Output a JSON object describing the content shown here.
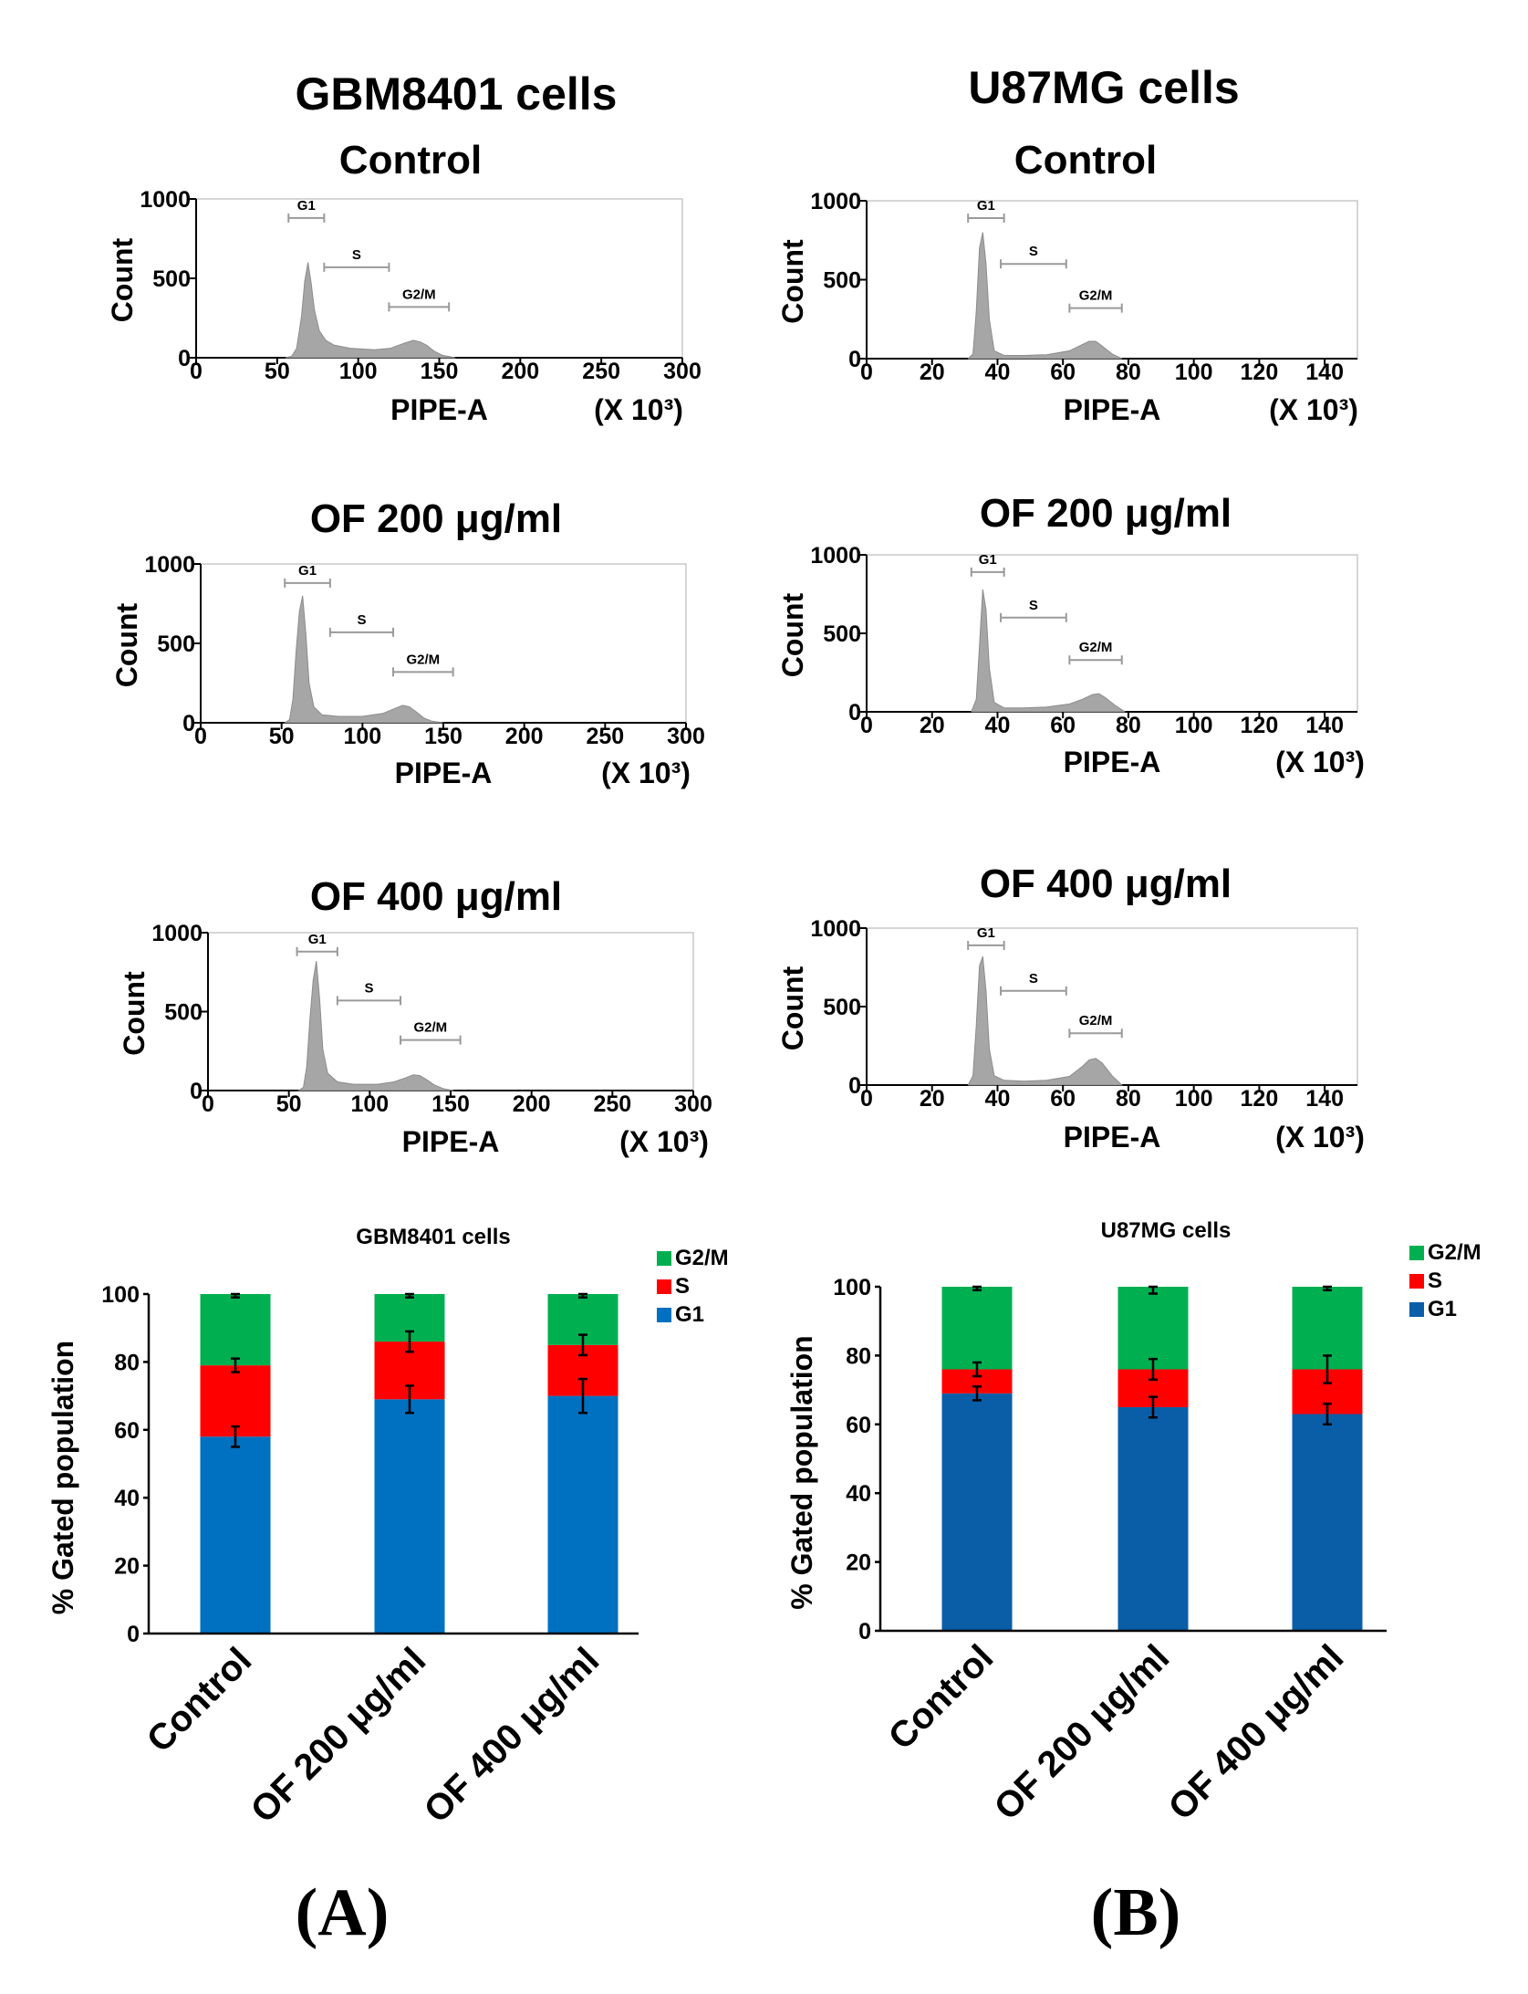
{
  "column_titles": [
    "GBM8401 cells",
    "U87MG cells"
  ],
  "panel_labels": [
    "(A)",
    "(B)"
  ],
  "colors": {
    "histogram_fill": "#a6a6a6",
    "gate": "#9a9a9a",
    "g1_A": "#0070c0",
    "g1_B": "#0a5ea8",
    "s": "#ff0000",
    "g2m": "#00b050"
  },
  "chart_data": [
    {
      "id": "hist-gbm-control",
      "type": "area",
      "cell_line": "GBM8401 cells",
      "title": "Control",
      "xlabel": "PIPE-A",
      "xunit": "(X 10³)",
      "ylabel": "Count",
      "xlim": [
        0,
        300
      ],
      "ylim": [
        0,
        1000
      ],
      "xticks": [
        0,
        50,
        100,
        150,
        200,
        250,
        300
      ],
      "yticks": [
        0,
        500,
        1000
      ],
      "gates": [
        {
          "label": "G1",
          "x_range": [
            57,
            79
          ],
          "y": 880
        },
        {
          "label": "S",
          "x_range": [
            79,
            119
          ],
          "y": 570
        },
        {
          "label": "G2/M",
          "x_range": [
            119,
            156
          ],
          "y": 320
        }
      ],
      "x": [
        55,
        59,
        62,
        65,
        67,
        69,
        71,
        73,
        76,
        80,
        85,
        95,
        110,
        120,
        128,
        134,
        138,
        142,
        147,
        152,
        160
      ],
      "values": [
        0,
        10,
        60,
        260,
        480,
        600,
        470,
        300,
        170,
        110,
        80,
        60,
        50,
        60,
        90,
        110,
        100,
        80,
        40,
        15,
        0
      ]
    },
    {
      "id": "hist-u87-control",
      "type": "area",
      "cell_line": "U87MG cells",
      "title": "Control",
      "xlabel": "PIPE-A",
      "xunit": "(X 10³)",
      "ylabel": "Count",
      "xlim": [
        0,
        150
      ],
      "ylim": [
        0,
        1000
      ],
      "xticks": [
        0,
        20,
        40,
        60,
        80,
        100,
        120,
        140
      ],
      "yticks": [
        0,
        500,
        1000
      ],
      "gates": [
        {
          "label": "G1",
          "x_range": [
            31,
            42
          ],
          "y": 890
        },
        {
          "label": "S",
          "x_range": [
            41,
            61
          ],
          "y": 600
        },
        {
          "label": "G2/M",
          "x_range": [
            62,
            78
          ],
          "y": 320
        }
      ],
      "x": [
        31,
        32.5,
        33.5,
        34.5,
        35.5,
        36.5,
        37.5,
        39,
        42,
        48,
        55,
        62,
        66,
        68,
        70,
        72,
        75,
        78
      ],
      "values": [
        0,
        30,
        300,
        700,
        800,
        600,
        250,
        50,
        20,
        20,
        25,
        50,
        90,
        110,
        110,
        80,
        30,
        0
      ]
    },
    {
      "id": "hist-gbm-of200",
      "type": "area",
      "cell_line": "GBM8401 cells",
      "title": "OF 200 μg/ml",
      "xlabel": "PIPE-A",
      "xunit": "(X 10³)",
      "ylabel": "Count",
      "xlim": [
        0,
        300
      ],
      "ylim": [
        0,
        1000
      ],
      "xticks": [
        0,
        50,
        100,
        150,
        200,
        250,
        300
      ],
      "yticks": [
        0,
        500,
        1000
      ],
      "gates": [
        {
          "label": "G1",
          "x_range": [
            52,
            80
          ],
          "y": 880
        },
        {
          "label": "S",
          "x_range": [
            80,
            119
          ],
          "y": 570
        },
        {
          "label": "G2/M",
          "x_range": [
            119,
            156
          ],
          "y": 320
        }
      ],
      "x": [
        52,
        55,
        57,
        59,
        61,
        63,
        65,
        67,
        70,
        75,
        85,
        100,
        113,
        120,
        125,
        129,
        133,
        138,
        143,
        150
      ],
      "values": [
        0,
        20,
        150,
        450,
        700,
        800,
        560,
        250,
        100,
        50,
        40,
        40,
        60,
        90,
        110,
        100,
        70,
        30,
        10,
        0
      ]
    },
    {
      "id": "hist-u87-of200",
      "type": "area",
      "cell_line": "U87MG cells",
      "title": "OF 200 μg/ml",
      "xlabel": "PIPE-A",
      "xunit": "(X 10³)",
      "ylabel": "Count",
      "xlim": [
        0,
        150
      ],
      "ylim": [
        0,
        1000
      ],
      "xticks": [
        0,
        20,
        40,
        60,
        80,
        100,
        120,
        140
      ],
      "yticks": [
        0,
        500,
        1000
      ],
      "gates": [
        {
          "label": "G1",
          "x_range": [
            32,
            42
          ],
          "y": 890
        },
        {
          "label": "S",
          "x_range": [
            41,
            61
          ],
          "y": 600
        },
        {
          "label": "G2/M",
          "x_range": [
            62,
            78
          ],
          "y": 330
        }
      ],
      "x": [
        32,
        33.5,
        34.5,
        35.5,
        36.5,
        37.5,
        39,
        42,
        48,
        55,
        62,
        66,
        69,
        71,
        73,
        76,
        79
      ],
      "values": [
        0,
        80,
        420,
        780,
        650,
        280,
        60,
        25,
        25,
        30,
        50,
        80,
        110,
        115,
        90,
        40,
        0
      ]
    },
    {
      "id": "hist-gbm-of400",
      "type": "area",
      "cell_line": "GBM8401 cells",
      "title": "OF 400 μg/ml",
      "xlabel": "PIPE-A",
      "xunit": "(X 10³)",
      "ylabel": "Count",
      "xlim": [
        0,
        300
      ],
      "ylim": [
        0,
        1000
      ],
      "xticks": [
        0,
        50,
        100,
        150,
        200,
        250,
        300
      ],
      "yticks": [
        0,
        500,
        1000
      ],
      "gates": [
        {
          "label": "G1",
          "x_range": [
            55,
            80
          ],
          "y": 880
        },
        {
          "label": "S",
          "x_range": [
            80,
            119
          ],
          "y": 570
        },
        {
          "label": "G2/M",
          "x_range": [
            119,
            156
          ],
          "y": 320
        }
      ],
      "x": [
        56,
        59,
        61,
        63,
        65,
        67,
        69,
        71,
        74,
        80,
        90,
        105,
        115,
        122,
        127,
        131,
        135,
        140,
        146,
        152
      ],
      "values": [
        0,
        20,
        150,
        450,
        700,
        820,
        580,
        260,
        110,
        55,
        40,
        40,
        55,
        80,
        100,
        95,
        70,
        35,
        10,
        0
      ]
    },
    {
      "id": "hist-u87-of400",
      "type": "area",
      "cell_line": "U87MG cells",
      "title": "OF 400 μg/ml",
      "xlabel": "PIPE-A",
      "xunit": "(X 10³)",
      "ylabel": "Count",
      "xlim": [
        0,
        150
      ],
      "ylim": [
        0,
        1000
      ],
      "xticks": [
        0,
        20,
        40,
        60,
        80,
        100,
        120,
        140
      ],
      "yticks": [
        0,
        500,
        1000
      ],
      "gates": [
        {
          "label": "G1",
          "x_range": [
            31,
            42
          ],
          "y": 890
        },
        {
          "label": "S",
          "x_range": [
            41,
            61
          ],
          "y": 600
        },
        {
          "label": "G2/M",
          "x_range": [
            62,
            78
          ],
          "y": 330
        }
      ],
      "x": [
        31,
        32.5,
        33.5,
        34.5,
        35.5,
        36.5,
        37.5,
        39,
        42,
        48,
        55,
        62,
        66,
        68,
        70,
        72,
        75,
        78
      ],
      "values": [
        0,
        60,
        380,
        760,
        820,
        600,
        230,
        60,
        30,
        25,
        30,
        55,
        120,
        160,
        170,
        140,
        60,
        0
      ]
    },
    {
      "id": "bar-gbm",
      "type": "bar",
      "stacked": true,
      "title": "GBM8401 cells",
      "ylabel": "% Gated population",
      "ylim": [
        0,
        100
      ],
      "yticks": [
        0,
        20,
        40,
        60,
        80,
        100
      ],
      "categories": [
        "Control",
        "OF 200 μg/ml",
        "OF 400 μg/ml"
      ],
      "legend": [
        "G2/M",
        "S",
        "G1"
      ],
      "series": [
        {
          "name": "G1",
          "color_key": "g1_A",
          "values": [
            58,
            69,
            70
          ],
          "errors": [
            3,
            4,
            5
          ]
        },
        {
          "name": "S",
          "color_key": "s",
          "values": [
            21,
            17,
            15
          ],
          "errors": [
            2,
            3,
            3
          ]
        },
        {
          "name": "G2/M",
          "color_key": "g2m",
          "values": [
            21,
            14,
            15
          ],
          "errors": [
            1,
            1,
            1
          ]
        }
      ]
    },
    {
      "id": "bar-u87",
      "type": "bar",
      "stacked": true,
      "title": "U87MG cells",
      "ylabel": "% Gated population",
      "ylim": [
        0,
        100
      ],
      "yticks": [
        0,
        20,
        40,
        60,
        80,
        100
      ],
      "categories": [
        "Control",
        "OF 200 μg/ml",
        "OF 400 μg/ml"
      ],
      "legend": [
        "G2/M",
        "S",
        "G1"
      ],
      "series": [
        {
          "name": "G1",
          "color_key": "g1_B",
          "values": [
            69,
            65,
            63
          ],
          "errors": [
            2,
            3,
            3
          ]
        },
        {
          "name": "S",
          "color_key": "s",
          "values": [
            7,
            11,
            13
          ],
          "errors": [
            2,
            3,
            4
          ]
        },
        {
          "name": "G2/M",
          "color_key": "g2m",
          "values": [
            24,
            24,
            24
          ],
          "errors": [
            1,
            2,
            1
          ]
        }
      ]
    }
  ]
}
